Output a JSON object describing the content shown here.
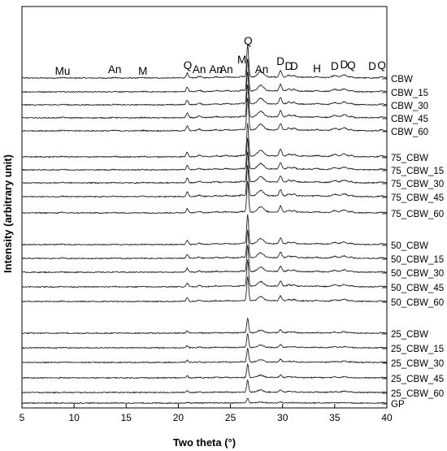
{
  "chart_data": {
    "type": "line",
    "title": "",
    "xlabel": "Two theta (°)",
    "ylabel": "Intensity (arbitrary unit)",
    "xlim": [
      5,
      40
    ],
    "x_ticks": [
      "5",
      "10",
      "15",
      "20",
      "25",
      "30",
      "35",
      "40"
    ],
    "grid": false,
    "legend": "none",
    "line_color": "#222222",
    "peaks": [
      {
        "label": "Mu",
        "x": 8.9
      },
      {
        "label": "An",
        "x": 13.9
      },
      {
        "label": "M",
        "x": 16.6
      },
      {
        "label": "Q",
        "x": 20.9
      },
      {
        "label": "An",
        "x": 22.0
      },
      {
        "label": "An",
        "x": 23.6
      },
      {
        "label": "An",
        "x": 24.6
      },
      {
        "label": "M",
        "x": 26.1
      },
      {
        "label": "Q",
        "x": 26.7
      },
      {
        "label": "An",
        "x": 28.0
      },
      {
        "label": "D",
        "x": 29.8
      },
      {
        "label": "D",
        "x": 30.6
      },
      {
        "label": "D",
        "x": 31.1
      },
      {
        "label": "H",
        "x": 33.3
      },
      {
        "label": "D",
        "x": 35.0
      },
      {
        "label": "D",
        "x": 35.9
      },
      {
        "label": "Q",
        "x": 36.6
      },
      {
        "label": "D",
        "x": 38.6
      },
      {
        "label": "Q",
        "x": 39.5
      }
    ],
    "series": [
      {
        "name": "CBW",
        "group": 0,
        "scale": 1.0
      },
      {
        "name": "CBW_15",
        "group": 0,
        "scale": 1.0
      },
      {
        "name": "CBW_30",
        "group": 0,
        "scale": 1.0
      },
      {
        "name": "CBW_45",
        "group": 0,
        "scale": 1.0
      },
      {
        "name": "CBW_60",
        "group": 0,
        "scale": 1.0
      },
      {
        "name": "75_CBW",
        "group": 1,
        "scale": 1.0
      },
      {
        "name": "75_CBW_15",
        "group": 1,
        "scale": 0.95
      },
      {
        "name": "75_CBW_30",
        "group": 1,
        "scale": 0.95
      },
      {
        "name": "75_CBW_45",
        "group": 1,
        "scale": 0.95
      },
      {
        "name": "75_CBW_60",
        "group": 1,
        "scale": 0.95
      },
      {
        "name": "50_CBW",
        "group": 2,
        "scale": 0.9
      },
      {
        "name": "50_CBW_15",
        "group": 2,
        "scale": 0.85
      },
      {
        "name": "50_CBW_30",
        "group": 2,
        "scale": 0.8
      },
      {
        "name": "50_CBW_45",
        "group": 2,
        "scale": 0.8
      },
      {
        "name": "50_CBW_60",
        "group": 2,
        "scale": 0.75
      },
      {
        "name": "25_CBW",
        "group": 3,
        "scale": 0.45
      },
      {
        "name": "25_CBW_15",
        "group": 3,
        "scale": 0.42
      },
      {
        "name": "25_CBW_30",
        "group": 3,
        "scale": 0.42
      },
      {
        "name": "25_CBW_45",
        "group": 3,
        "scale": 0.4
      },
      {
        "name": "25_CBW_60",
        "group": 3,
        "scale": 0.38
      },
      {
        "name": "GP",
        "group": 4,
        "scale": 0.15
      }
    ]
  }
}
